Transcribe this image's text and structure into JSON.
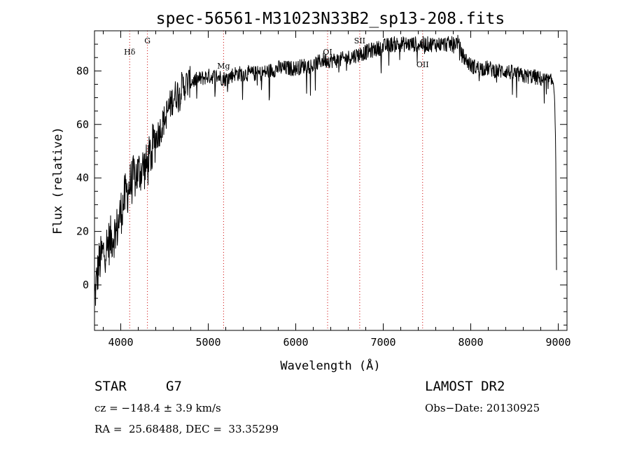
{
  "chart_data": {
    "type": "line",
    "title": "spec-56561-M31023N33B2_sp13-208.fits",
    "xlabel": "Wavelength (Å)",
    "ylabel": "Flux (relative)",
    "xlim": [
      3700,
      9100
    ],
    "ylim": [
      -17,
      95
    ],
    "xticks": [
      4000,
      5000,
      6000,
      7000,
      8000,
      9000
    ],
    "yticks": [
      0,
      20,
      40,
      60,
      80
    ],
    "grid": false,
    "series": [
      {
        "x": [
          3700,
          3750,
          3800,
          3850,
          3900,
          3950,
          4000,
          4050,
          4100,
          4150,
          4200,
          4250,
          4300,
          4350,
          4400,
          4450,
          4500,
          4600,
          4700,
          4800,
          4900,
          5000,
          5100,
          5200,
          5300,
          5400,
          5500,
          5600,
          5700,
          5800,
          5900,
          6000,
          6100,
          6200,
          6300,
          6400,
          6500,
          6600,
          6700,
          6800,
          6900,
          7000,
          7100,
          7200,
          7300,
          7400,
          7500,
          7600,
          7700,
          7800,
          7850,
          7900,
          8000,
          8100,
          8200,
          8300,
          8400,
          8500,
          8600,
          8700,
          8800,
          8900,
          8950,
          8970,
          8980
        ],
        "y": [
          -5,
          8,
          12,
          15,
          18,
          20,
          27,
          33,
          37,
          40,
          42,
          44,
          44,
          50,
          55,
          58,
          62,
          70,
          74,
          76,
          77,
          78,
          78,
          77,
          79,
          79,
          79,
          79,
          80,
          81,
          81,
          81,
          82,
          82,
          84,
          84,
          84,
          85,
          86,
          87,
          88,
          89,
          90,
          90,
          90,
          90,
          90,
          90,
          90,
          90,
          91,
          86,
          82,
          81,
          81,
          80,
          80,
          79,
          78,
          78,
          77,
          76,
          76,
          60,
          0
        ],
        "color": "#000000"
      }
    ],
    "spectral_lines": [
      {
        "label": "Hδ",
        "x": 4102
      },
      {
        "label": "G",
        "x": 4305
      },
      {
        "label": "Mg",
        "x": 5175
      },
      {
        "label": "OI",
        "x": 6364
      },
      {
        "label": "SII",
        "x": 6731
      },
      {
        "label": "OII",
        "x": 7450
      }
    ],
    "line_color": "#cc0000"
  },
  "info": {
    "object_class": "STAR",
    "subclass": "G7",
    "survey": "LAMOST DR2",
    "redshift": "cz = −148.4 ± 3.9 km/s",
    "obs_date": "Obs−Date: 20130925",
    "coords": "RA =  25.68488, DEC =  33.35299"
  }
}
